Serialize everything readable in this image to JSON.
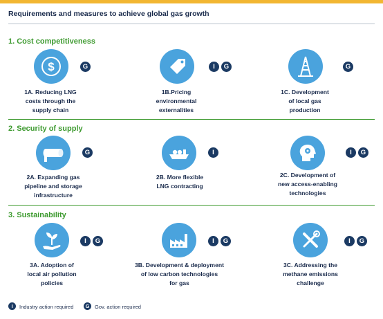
{
  "title": "Requirements and measures to achieve global gas growth",
  "badge_letters": {
    "industry": "I",
    "government": "G"
  },
  "sections": [
    {
      "title": "1. Cost competitiveness",
      "items": [
        {
          "label": [
            "1A. Reducing LNG",
            "costs through the",
            "supply chain"
          ],
          "icon": "dollar-coin-icon",
          "badges": [
            "G"
          ]
        },
        {
          "label": [
            "1B.Pricing",
            "environmental",
            "externalities"
          ],
          "icon": "price-tag-icon",
          "badges": [
            "I",
            "G"
          ]
        },
        {
          "label": [
            "1C. Development",
            "of local gas",
            "production"
          ],
          "icon": "drilling-rig-icon",
          "badges": [
            "G"
          ]
        }
      ]
    },
    {
      "title": "2. Security of supply",
      "items": [
        {
          "label": [
            "2A. Expanding gas",
            "pipeline and storage",
            "infrastructure"
          ],
          "icon": "pipeline-icon",
          "badges": [
            "G"
          ]
        },
        {
          "label": [
            "2B. More flexible",
            "LNG contracting"
          ],
          "icon": "lng-ship-icon",
          "badges": [
            "I"
          ]
        },
        {
          "label": [
            "2C. Development of",
            "new access-enabling",
            "technologies"
          ],
          "icon": "head-gears-icon",
          "badges": [
            "I",
            "G"
          ]
        }
      ]
    },
    {
      "title": "3. Sustainability",
      "items": [
        {
          "label": [
            "3A. Adoption of",
            "local air pollution",
            "policies"
          ],
          "icon": "plant-hand-icon",
          "badges": [
            "I",
            "G"
          ]
        },
        {
          "label": [
            "3B. Development & deployment",
            "of low carbon technologies",
            "for gas"
          ],
          "icon": "factory-icon",
          "badges": [
            "I",
            "G"
          ]
        },
        {
          "label": [
            "3C. Addressing the",
            "methane emissions",
            "challenge"
          ],
          "icon": "tools-icon",
          "badges": [
            "I",
            "G"
          ]
        }
      ]
    }
  ],
  "legend": {
    "industry": "Industry action required",
    "government": "Gov. action required"
  },
  "colors": {
    "accent_bar": "#f2b632",
    "section": "#3d9a2f",
    "icon_circle": "#4aa3dd",
    "badge": "#1b3a63"
  }
}
